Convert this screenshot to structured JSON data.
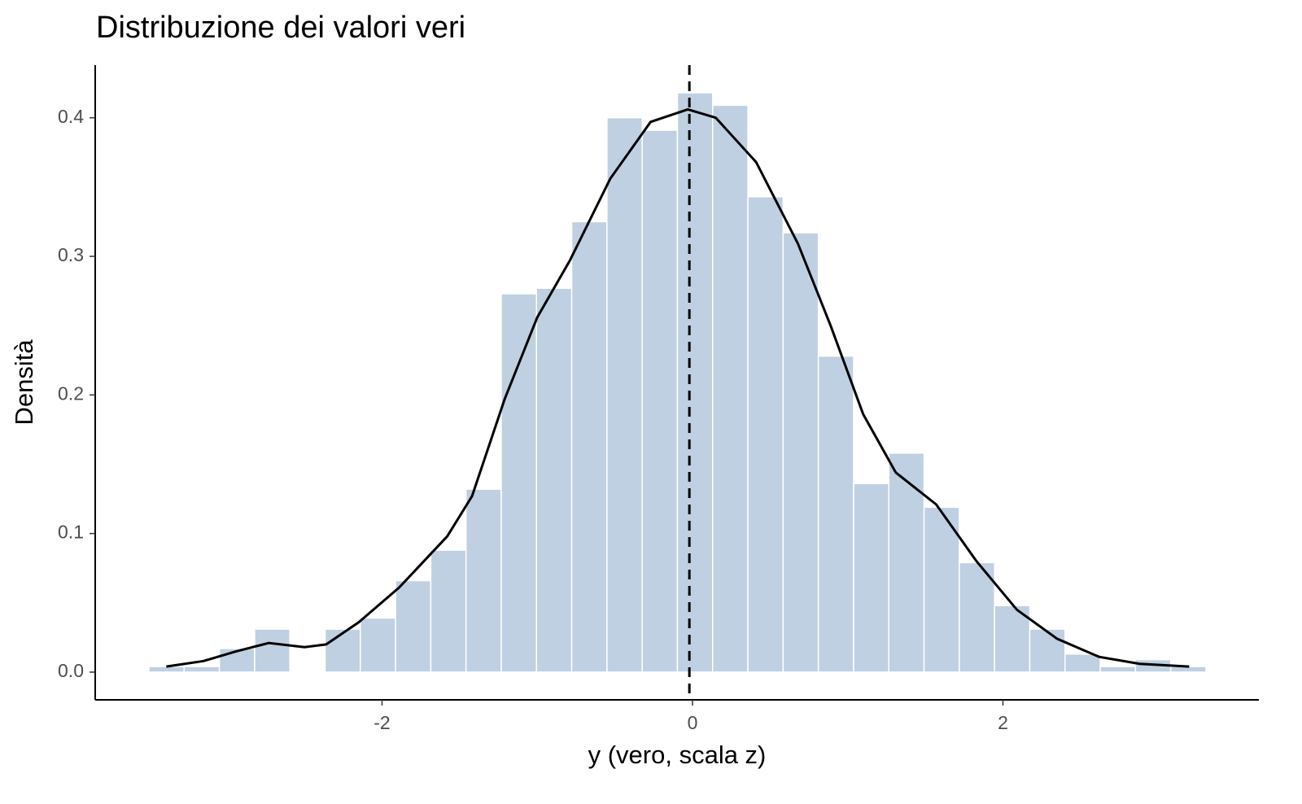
{
  "chart_data": {
    "type": "histogram",
    "title": "Distribuzione dei valori veri",
    "xlabel": "y (vero, scala z)",
    "ylabel": "Densità",
    "bins": [
      -3.502,
      -3.275,
      -3.048,
      -2.821,
      -2.594,
      -2.367,
      -2.14,
      -1.913,
      -1.686,
      -1.459,
      -1.232,
      -1.005,
      -0.778,
      -0.551,
      -0.324,
      -0.097,
      0.13,
      0.357,
      0.584,
      0.811,
      1.038,
      1.265,
      1.492,
      1.719,
      1.946,
      2.173,
      2.4,
      2.627,
      2.854,
      3.081,
      3.308
    ],
    "values": [
      0.004,
      0.004,
      0.017,
      0.031,
      0,
      0.031,
      0.039,
      0.066,
      0.088,
      0.132,
      0.273,
      0.277,
      0.325,
      0.4,
      0.391,
      0.418,
      0.409,
      0.343,
      0.317,
      0.228,
      0.136,
      0.158,
      0.119,
      0.079,
      0.048,
      0.031,
      0.013,
      0.004,
      0.009,
      0.004
    ],
    "color": "#bfd0e2",
    "density": {
      "x": [
        -3.39,
        -3.15,
        -2.94,
        -2.73,
        -2.5,
        -2.36,
        -2.15,
        -1.89,
        -1.58,
        -1.42,
        -1.21,
        -1.0,
        -0.79,
        -0.53,
        -0.27,
        -0.03,
        0.15,
        0.41,
        0.68,
        0.89,
        1.1,
        1.31,
        1.57,
        1.83,
        2.09,
        2.35,
        2.62,
        2.88,
        3.2
      ],
      "y": [
        0.004,
        0.008,
        0.015,
        0.021,
        0.018,
        0.02,
        0.036,
        0.061,
        0.098,
        0.127,
        0.197,
        0.256,
        0.297,
        0.356,
        0.397,
        0.406,
        0.4,
        0.368,
        0.309,
        0.25,
        0.186,
        0.144,
        0.121,
        0.08,
        0.045,
        0.024,
        0.011,
        0.006,
        0.004
      ],
      "color": "#000000"
    },
    "vline": -0.02,
    "xlim": [
      -3.848,
      3.649
    ],
    "ylim": [
      -0.02,
      0.438
    ],
    "xticks": [
      -2,
      0,
      2
    ],
    "yticks": [
      {
        "value": 0,
        "label": "0.0"
      },
      0.1,
      0.2,
      0.3,
      0.4
    ]
  }
}
